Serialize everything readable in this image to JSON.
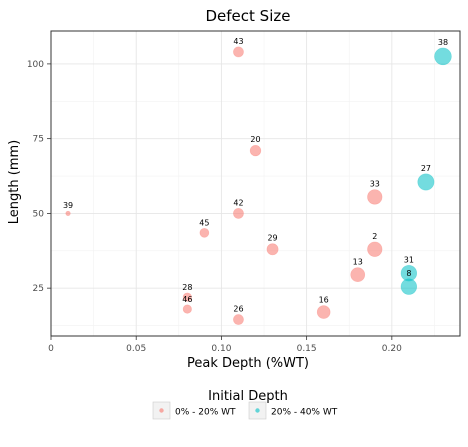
{
  "chart_data": {
    "type": "scatter",
    "title": "Defect Size",
    "xlabel": "Peak Depth (%WT)",
    "ylabel": "Length (mm)",
    "xlim": [
      0,
      0.24
    ],
    "ylim": [
      9,
      111
    ],
    "x_ticks": [
      0,
      0.05,
      0.1,
      0.15,
      0.2
    ],
    "x_tick_labels": [
      "0",
      "0.05",
      "0.10",
      "0.15",
      "0.20"
    ],
    "y_ticks": [
      25,
      50,
      75,
      100
    ],
    "y_tick_labels": [
      "25",
      "50",
      "75",
      "100"
    ],
    "grid": true,
    "legend": {
      "title": "Initial Depth",
      "position": "bottom",
      "entries": [
        "0% - 20% WT",
        "20% - 40% WT"
      ]
    },
    "series": [
      {
        "name": "0% - 20% WT",
        "color": "#F8766D",
        "points": [
          {
            "label": "43",
            "x": 0.11,
            "y": 104
          },
          {
            "label": "20",
            "x": 0.12,
            "y": 71
          },
          {
            "label": "33",
            "x": 0.19,
            "y": 55.5
          },
          {
            "label": "39",
            "x": 0.01,
            "y": 50
          },
          {
            "label": "42",
            "x": 0.11,
            "y": 50
          },
          {
            "label": "45",
            "x": 0.09,
            "y": 43.5
          },
          {
            "label": "29",
            "x": 0.13,
            "y": 38
          },
          {
            "label": "2",
            "x": 0.19,
            "y": 38
          },
          {
            "label": "13",
            "x": 0.18,
            "y": 29.5
          },
          {
            "label": "28",
            "x": 0.08,
            "y": 22
          },
          {
            "label": "46",
            "x": 0.08,
            "y": 18
          },
          {
            "label": "16",
            "x": 0.16,
            "y": 17
          },
          {
            "label": "26",
            "x": 0.11,
            "y": 14.5
          }
        ]
      },
      {
        "name": "20% - 40% WT",
        "color": "#00BFC4",
        "points": [
          {
            "label": "38",
            "x": 0.23,
            "y": 102.5
          },
          {
            "label": "27",
            "x": 0.22,
            "y": 60.5
          },
          {
            "label": "31",
            "x": 0.21,
            "y": 30
          },
          {
            "label": "8",
            "x": 0.21,
            "y": 25.5
          }
        ]
      }
    ]
  }
}
